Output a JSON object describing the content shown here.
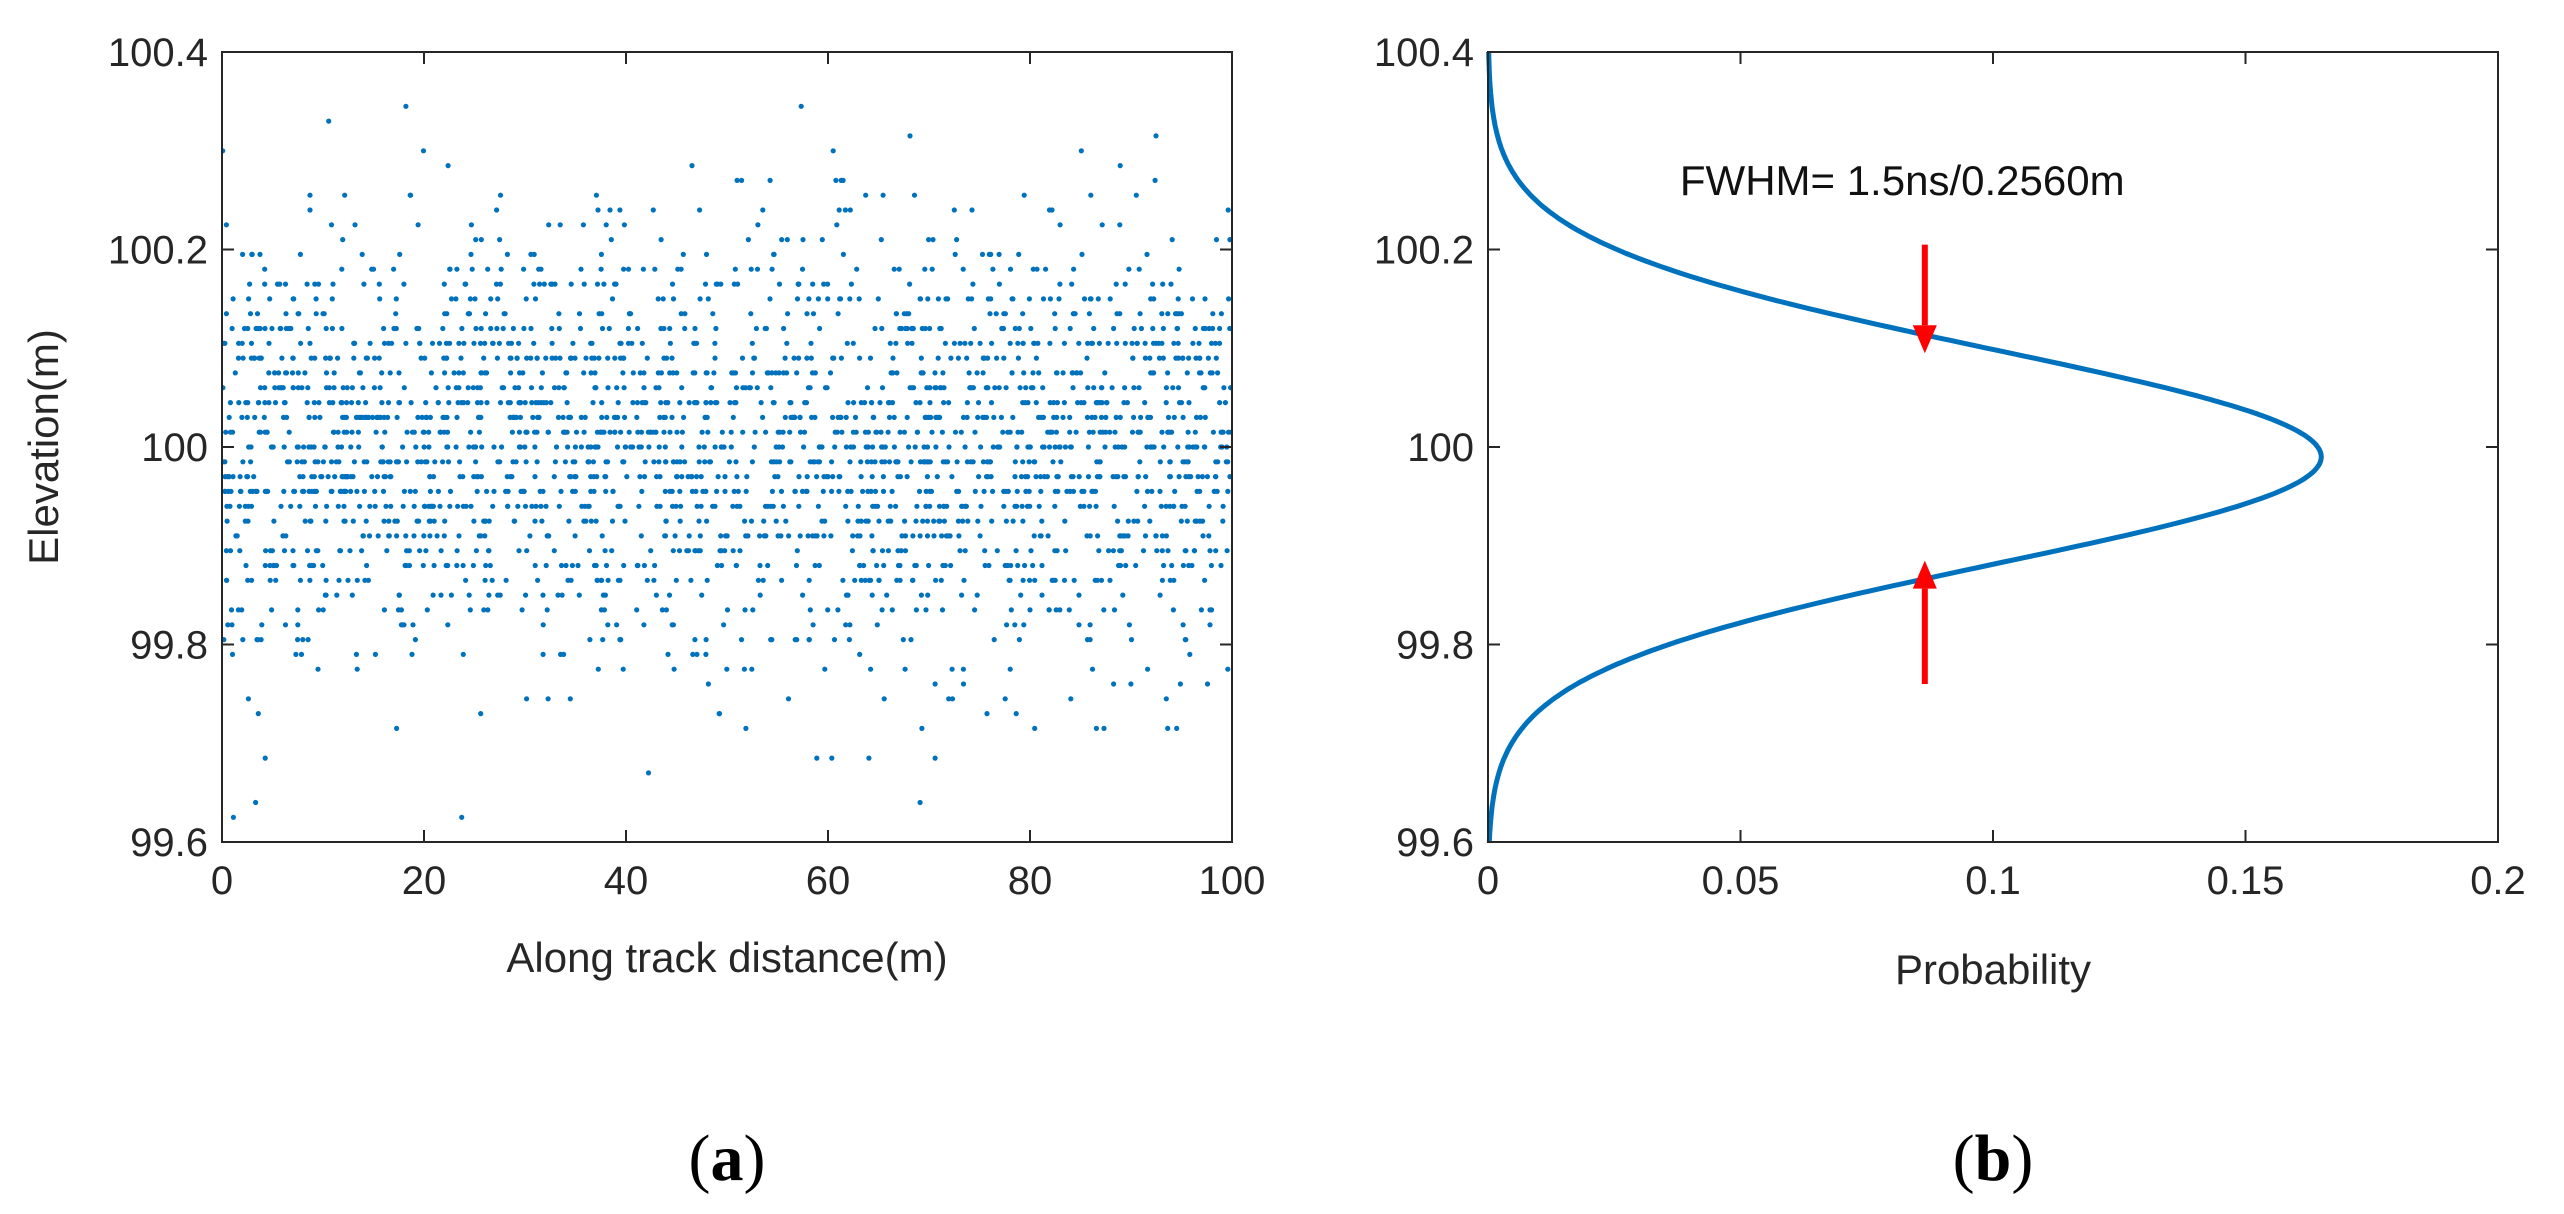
{
  "colors": {
    "series": "#0072BD",
    "arrow": "#ff0000",
    "axis": "#262626"
  },
  "chart_data": [
    {
      "id": "a",
      "type": "scatter",
      "caption": "a",
      "xlabel": "Along track distance(m)",
      "ylabel": "Elevation(m)",
      "xlim": [
        0,
        100
      ],
      "ylim": [
        99.6,
        100.4
      ],
      "xticks": [
        0,
        20,
        40,
        60,
        80,
        100
      ],
      "xtick_labels": [
        "0",
        "20",
        "40",
        "60",
        "80",
        "100"
      ],
      "yticks": [
        99.6,
        99.8,
        100,
        100.2,
        100.4
      ],
      "ytick_labels": [
        "99.6",
        "99.8",
        "100",
        "100.2",
        "100.4"
      ],
      "grid": false,
      "series": [
        {
          "description": "simulated photon returns, approx. normal about 100 m (sigma ~0.109 m, FWHM 0.2560 m), quantized in 0.015 m elevation bins, ~2500 points",
          "n_points": 2500,
          "y_mean": 100.0,
          "y_std": 0.1087,
          "y_step": 0.015
        }
      ]
    },
    {
      "id": "b",
      "type": "line",
      "caption": "b",
      "xlabel": "Probability",
      "ylabel": "",
      "xlim": [
        0,
        0.2
      ],
      "ylim": [
        99.6,
        100.4
      ],
      "xticks": [
        0,
        0.05,
        0.1,
        0.15,
        0.2
      ],
      "xtick_labels": [
        "0",
        "0.05",
        "0.1",
        "0.15",
        "0.2"
      ],
      "yticks": [
        99.6,
        99.8,
        100,
        100.2,
        100.4
      ],
      "ytick_labels": [
        "99.6",
        "99.8",
        "100",
        "100.2",
        "100.4"
      ],
      "grid": false,
      "series": [
        {
          "description": "Gaussian probability profile vs elevation",
          "x": [
            0.0,
            0.0,
            0.0002,
            0.0006,
            0.0013,
            0.0027,
            0.0053,
            0.01,
            0.0181,
            0.0313,
            0.0517,
            0.0772,
            0.1036,
            0.128,
            0.147,
            0.16,
            0.165,
            0.16,
            0.147,
            0.128,
            0.1036,
            0.0772,
            0.0517,
            0.0313,
            0.0181,
            0.01,
            0.0053,
            0.0027,
            0.0013,
            0.0006,
            0.0002,
            0.0,
            0.0
          ],
          "y": [
            100.4,
            100.38,
            100.35,
            100.32,
            100.29,
            100.26,
            100.23,
            100.2,
            100.17,
            100.14,
            100.11,
            100.08,
            100.05,
            100.02,
            99.995,
            99.978,
            99.99,
            100.002,
            99.985,
            99.96,
            99.93,
            99.9,
            99.87,
            99.84,
            99.81,
            99.78,
            99.75,
            99.72,
            99.69,
            99.66,
            99.64,
            99.62,
            99.6
          ],
          "peak_x": 0.165,
          "peak_y": 99.99
        }
      ],
      "annotations": [
        {
          "text": "FWHM= 1.5ns/0.2560m",
          "x": 0.038,
          "y": 100.255
        }
      ],
      "arrows": [
        {
          "x": 0.0865,
          "y_start": 100.205,
          "y_end": 100.095,
          "direction": "down"
        },
        {
          "x": 0.0865,
          "y_start": 99.76,
          "y_end": 99.885,
          "direction": "up"
        }
      ]
    }
  ]
}
